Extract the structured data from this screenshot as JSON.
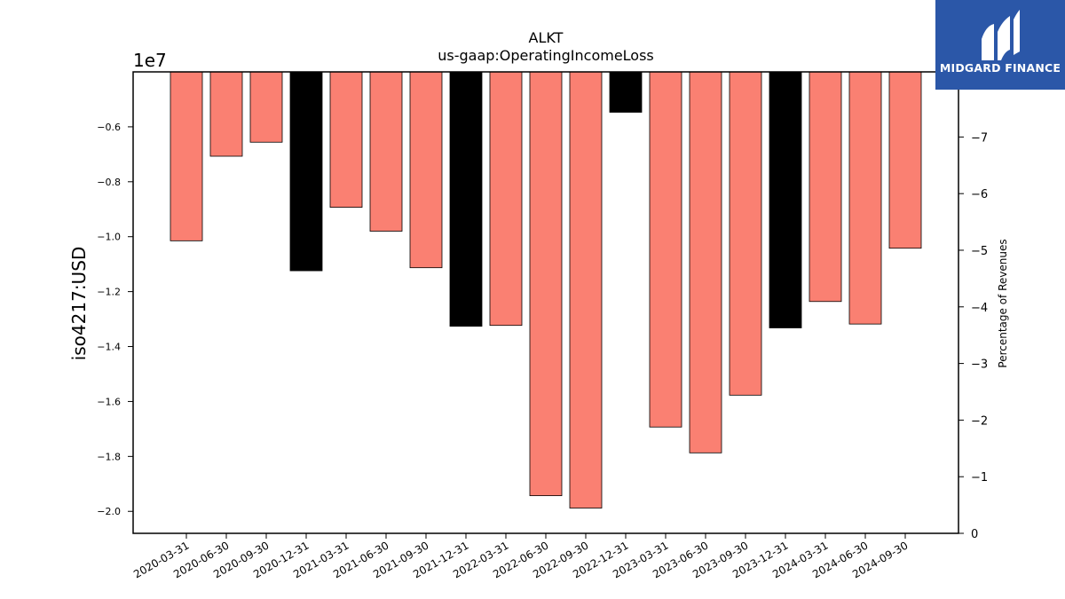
{
  "chart_data": {
    "type": "bar",
    "title": "ALKT",
    "subtitle": "us-gaap:OperatingIncomeLoss",
    "ylabel": "iso4217:USD",
    "y_offset_label": "1e7",
    "y2label": "Percentage of Revenues",
    "categories": [
      "2020-03-31",
      "2020-06-30",
      "2020-09-30",
      "2020-12-31",
      "2021-03-31",
      "2021-06-30",
      "2021-09-30",
      "2021-12-31",
      "2022-03-31",
      "2022-06-30",
      "2022-09-30",
      "2022-12-31",
      "2023-03-31",
      "2023-06-30",
      "2023-09-30",
      "2023-12-31",
      "2024-03-31",
      "2024-06-30",
      "2024-09-30"
    ],
    "values": [
      -10150000,
      -7070000,
      -6560000,
      -11240000,
      -8930000,
      -9800000,
      -11130000,
      -13260000,
      -13230000,
      -19430000,
      -19880000,
      -5470000,
      -16930000,
      -17870000,
      -15770000,
      -13320000,
      -12360000,
      -13180000,
      -10420000
    ],
    "bar_colors": [
      "#fa8072",
      "#fa8072",
      "#fa8072",
      "#000000",
      "#fa8072",
      "#fa8072",
      "#fa8072",
      "#000000",
      "#fa8072",
      "#fa8072",
      "#fa8072",
      "#000000",
      "#fa8072",
      "#fa8072",
      "#fa8072",
      "#000000",
      "#fa8072",
      "#fa8072",
      "#fa8072"
    ],
    "ylim": [
      -20800000,
      -4000000
    ],
    "yticks": [
      -6000000,
      -8000000,
      -10000000,
      -12000000,
      -14000000,
      -16000000,
      -18000000,
      -20000000
    ],
    "ytick_labels": [
      "−0.6",
      "−0.8",
      "−1.0",
      "−1.2",
      "−1.4",
      "−1.6",
      "−1.8",
      "−2.0"
    ],
    "y2lim": [
      0,
      8.15
    ],
    "y2ticks": [
      0,
      1,
      2,
      3,
      4,
      5,
      6,
      7
    ],
    "y2tick_labels": [
      "0",
      "−1",
      "−2",
      "−3",
      "−4",
      "−5",
      "−6",
      "−7"
    ],
    "grid": false
  },
  "logo": {
    "text": "MIDGARD FINANCE",
    "colors": {
      "background": "#2b57a8",
      "foreground": "#ffffff"
    }
  }
}
